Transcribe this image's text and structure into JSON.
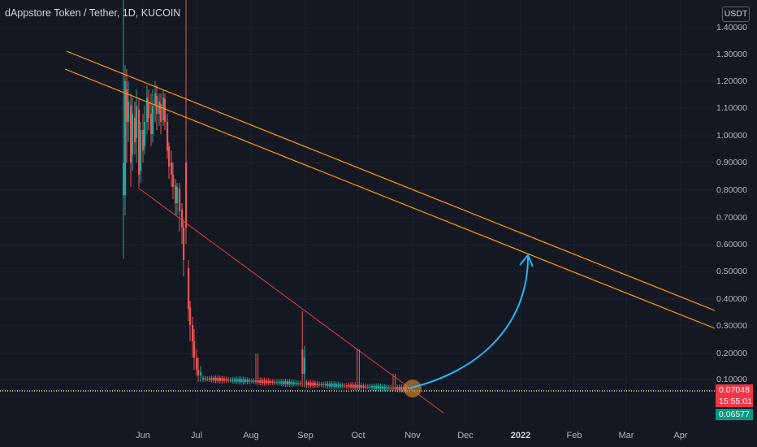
{
  "header": {
    "title": "dAppstore Token / Tether, 1D, KUCOIN",
    "unit": "USDT"
  },
  "price_axis": {
    "labels": [
      "1.40000",
      "1.30000",
      "1.20000",
      "1.10000",
      "1.00000",
      "0.90000",
      "0.80000",
      "0.70000",
      "0.60000",
      "0.50000",
      "0.40000",
      "0.30000",
      "0.20000",
      "0.10000"
    ]
  },
  "time_axis": {
    "labels": [
      "Jun",
      "Jul",
      "Aug",
      "Sep",
      "Oct",
      "Nov",
      "Dec",
      "2022",
      "Feb",
      "Mar",
      "Apr"
    ]
  },
  "badges": {
    "last_price": "0.07048",
    "countdown": "15:55:01",
    "low_price": "0.06577"
  },
  "colors": {
    "background": "#141823",
    "up_candle": "#26a69a",
    "down_candle": "#ef5350",
    "channel_line": "#ff9800",
    "trend_line": "#e53945",
    "projection_arrow": "#29b6f6",
    "support_line": "#e6e2b0"
  }
}
